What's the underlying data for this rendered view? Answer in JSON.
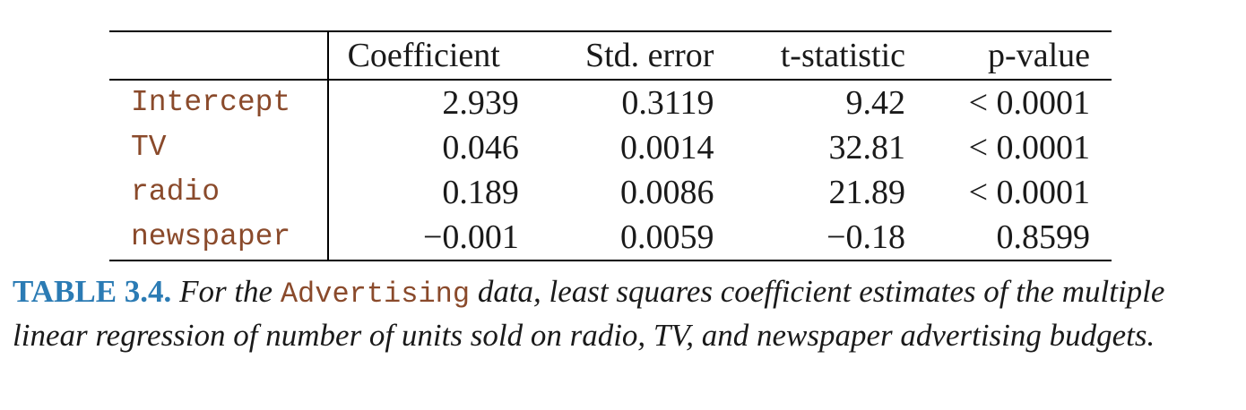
{
  "table": {
    "headers": [
      "",
      "Coefficient",
      "Std. error",
      "t-statistic",
      "p-value"
    ],
    "rows": [
      {
        "variable": "Intercept",
        "coefficient": "2.939",
        "std_error": "0.3119",
        "t_statistic": "9.42",
        "p_value": "< 0.0001"
      },
      {
        "variable": "TV",
        "coefficient": "0.046",
        "std_error": "0.0014",
        "t_statistic": "32.81",
        "p_value": "< 0.0001"
      },
      {
        "variable": "radio",
        "coefficient": "0.189",
        "std_error": "0.0086",
        "t_statistic": "21.89",
        "p_value": "< 0.0001"
      },
      {
        "variable": "newspaper",
        "coefficient": "−0.001",
        "std_error": "0.0059",
        "t_statistic": "−0.18",
        "p_value": "0.8599"
      }
    ]
  },
  "caption": {
    "label": "TABLE 3.4.",
    "text_before": " For the ",
    "dataset": "Advertising",
    "text_after": " data, least squares coefficient estimates of the multiple linear regression of number of units sold on radio, TV, and newspaper advertising budgets."
  },
  "colors": {
    "variable_text": "#8a4a2b",
    "caption_label": "#2b7bb4",
    "rules": "#000000"
  }
}
